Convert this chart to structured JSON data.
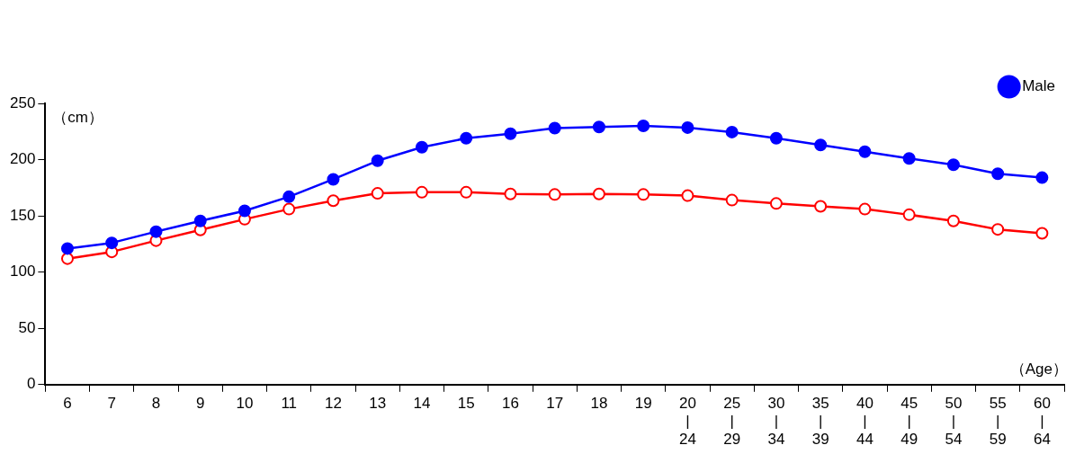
{
  "chart_data": {
    "type": "line",
    "ylabel": "（cm）",
    "xlabel": "（Age）",
    "categories": [
      "6",
      "7",
      "8",
      "9",
      "10",
      "11",
      "12",
      "13",
      "14",
      "15",
      "16",
      "17",
      "18",
      "19",
      "20\n|\n24",
      "25\n|\n29",
      "30\n|\n34",
      "35\n|\n39",
      "40\n|\n44",
      "45\n|\n49",
      "50\n|\n54",
      "55\n|\n59",
      "60\n|\n64"
    ],
    "series": [
      {
        "name": "Male",
        "color": "#0000ff",
        "values": [
          121,
          126,
          136,
          145.5,
          154.5,
          167,
          182.5,
          199,
          211,
          219,
          223,
          228,
          229,
          230,
          228.5,
          224.5,
          219,
          213,
          207,
          201,
          195.5,
          187.5,
          184
        ]
      },
      {
        "color": "#ff0000",
        "values": [
          112,
          118,
          128,
          137.5,
          147,
          156,
          163.5,
          170,
          171,
          171,
          169.5,
          169,
          169.5,
          169,
          168,
          164,
          161,
          158.5,
          156,
          151,
          145.5,
          138,
          134.5
        ]
      }
    ],
    "ylim": [
      0,
      250
    ],
    "yticks": [
      0,
      50,
      100,
      150,
      200,
      250
    ],
    "grid": false,
    "legend": "top right",
    "marker": "circle",
    "line_style": "solid"
  }
}
